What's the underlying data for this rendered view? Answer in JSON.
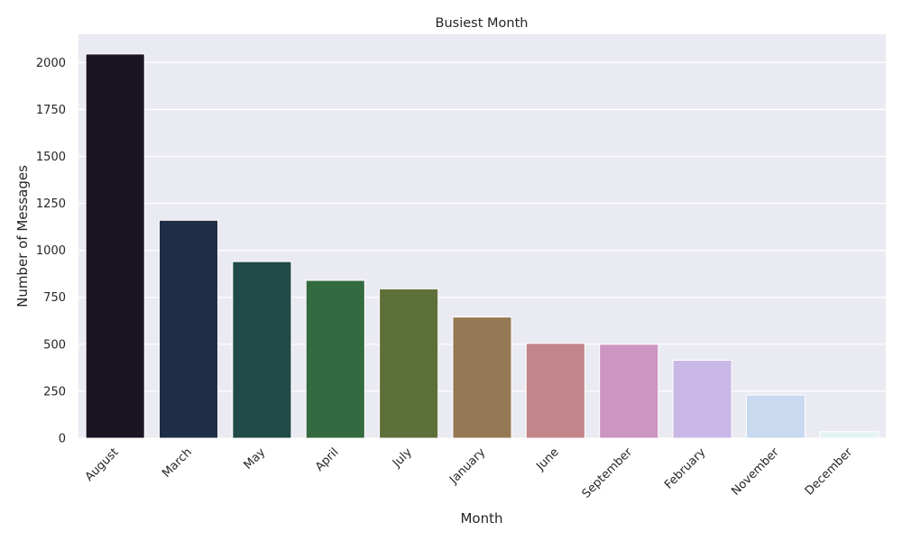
{
  "chart_data": {
    "type": "bar",
    "title": "Busiest Month",
    "xlabel": "Month",
    "ylabel": "Number of Messages",
    "categories": [
      "August",
      "March",
      "May",
      "April",
      "July",
      "January",
      "June",
      "September",
      "February",
      "November",
      "December"
    ],
    "values": [
      2045,
      1160,
      940,
      840,
      795,
      645,
      505,
      500,
      415,
      230,
      35
    ],
    "colors": [
      "#1b1423",
      "#1f2e46",
      "#1f4a48",
      "#336a3f",
      "#5e7039",
      "#957854",
      "#c28589",
      "#cd95c1",
      "#c9b8e6",
      "#c8d9f0",
      "#e4f3f2"
    ],
    "ylim": [
      0,
      2150
    ],
    "yticks": [
      0,
      250,
      500,
      750,
      1000,
      1250,
      1500,
      1750,
      2000
    ],
    "xtick_rotation": 45,
    "grid": true,
    "background": "#eaeaf2",
    "grid_color": "#ffffff"
  }
}
